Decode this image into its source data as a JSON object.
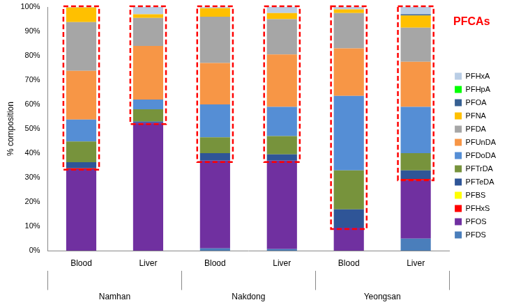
{
  "chart_data": {
    "type": "bar",
    "stacked": true,
    "y_label": "% composition",
    "categories": [
      "Blood",
      "Liver",
      "Blood",
      "Liver",
      "Blood",
      "Liver"
    ],
    "groups": [
      "Namhan",
      "Nakdong",
      "Yeongsan"
    ],
    "ylim": [
      0,
      100
    ],
    "yticks": [
      {
        "value": 0,
        "label": "0%"
      },
      {
        "value": 10,
        "label": "10%"
      },
      {
        "value": 20,
        "label": "20%"
      },
      {
        "value": 30,
        "label": "30%"
      },
      {
        "value": 40,
        "label": "40%"
      },
      {
        "value": 50,
        "label": "50%"
      },
      {
        "value": 60,
        "label": "60%"
      },
      {
        "value": 70,
        "label": "70%"
      },
      {
        "value": 80,
        "label": "80%"
      },
      {
        "value": 90,
        "label": "90%"
      },
      {
        "value": 100,
        "label": "100%"
      }
    ],
    "grid": false,
    "legend": "right",
    "series": [
      {
        "name": "PFDS",
        "color": "#4a7ebb",
        "values": [
          0,
          0,
          1,
          0.7,
          0,
          5
        ]
      },
      {
        "name": "PFOS",
        "color": "#7030a0",
        "values": [
          33.5,
          52.5,
          36,
          36.3,
          9.5,
          24
        ]
      },
      {
        "name": "PFHxS",
        "color": "#ff0000",
        "values": [
          0.3,
          0,
          0,
          0,
          0,
          0.5
        ]
      },
      {
        "name": "PFBS",
        "color": "#ffff00",
        "values": [
          0,
          0,
          0,
          0,
          0,
          0
        ]
      },
      {
        "name": "PFTeDA",
        "color": "#2f5597",
        "values": [
          2.5,
          0.5,
          3,
          2.5,
          7.5,
          3.5
        ]
      },
      {
        "name": "PFTrDA",
        "color": "#77933c",
        "values": [
          8.5,
          5,
          6.5,
          7.5,
          16,
          7
        ]
      },
      {
        "name": "PFDoDA",
        "color": "#558ed5",
        "values": [
          9,
          4,
          13.5,
          12,
          30.5,
          19
        ]
      },
      {
        "name": "PFUnDA",
        "color": "#f79646",
        "values": [
          20,
          22,
          17,
          21.5,
          19.5,
          18.5
        ]
      },
      {
        "name": "PFDA",
        "color": "#a6a6a6",
        "values": [
          20,
          11.5,
          19,
          14.5,
          14.5,
          14
        ]
      },
      {
        "name": "PFNA",
        "color": "#ffc000",
        "values": [
          6,
          1.5,
          3.5,
          2.5,
          1.5,
          5
        ]
      },
      {
        "name": "PFOA",
        "color": "#376092",
        "values": [
          0,
          0,
          0,
          0,
          0,
          0.5
        ]
      },
      {
        "name": "PFHpA",
        "color": "#00ff00",
        "values": [
          0,
          0,
          0,
          0,
          0,
          0
        ]
      },
      {
        "name": "PFHxA",
        "color": "#b9cde5",
        "values": [
          0.2,
          3,
          0.5,
          2.5,
          1,
          3
        ]
      }
    ],
    "annotations": [
      {
        "text": "PFCAs",
        "color": "#ff0000",
        "series": [
          "PFTeDA",
          "PFTrDA",
          "PFDoDA",
          "PFUnDA",
          "PFDA",
          "PFNA",
          "PFOA",
          "PFHpA",
          "PFHxA"
        ]
      }
    ]
  }
}
